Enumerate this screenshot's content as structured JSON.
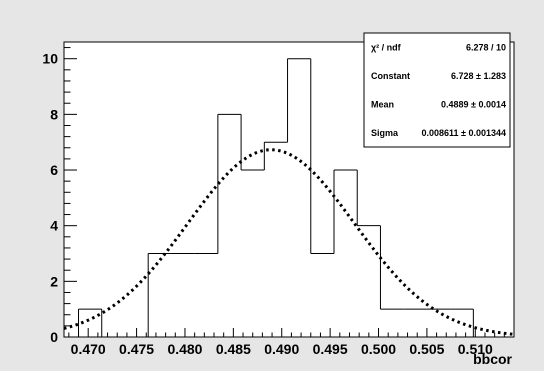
{
  "chart_data": {
    "type": "bar",
    "histogram_style": "step",
    "xlabel": "bbcor",
    "ylabel": "",
    "xlim": [
      0.4675,
      0.514
    ],
    "ylim": [
      0,
      10.6
    ],
    "x_ticks": [
      0.47,
      0.475,
      0.48,
      0.485,
      0.49,
      0.495,
      0.5,
      0.505,
      0.51
    ],
    "x_tick_labels": [
      "0.470",
      "0.475",
      "0.480",
      "0.485",
      "0.490",
      "0.495",
      "0.500",
      "0.505",
      "0.510"
    ],
    "y_ticks": [
      0,
      2,
      4,
      6,
      8,
      10
    ],
    "y_tick_labels": [
      "0",
      "2",
      "4",
      "6",
      "8",
      "10"
    ],
    "bin_edges": [
      0.469,
      0.4714,
      0.4738,
      0.4762,
      0.4786,
      0.481,
      0.4834,
      0.4858,
      0.4882,
      0.4906,
      0.493,
      0.4954,
      0.4978,
      0.5002,
      0.5026,
      0.505,
      0.5074,
      0.5098
    ],
    "counts": [
      1,
      0,
      0,
      3,
      3,
      3,
      8,
      6,
      7,
      10,
      3,
      6,
      4,
      1,
      1,
      1,
      1
    ],
    "fit": {
      "function": "gaus",
      "style": "dotted",
      "constant": 6.728,
      "mean": 0.4889,
      "sigma": 0.008611
    },
    "stats_box": {
      "position": "top-right",
      "rows": [
        {
          "label": "χ² / ndf",
          "value": "6.278 / 10"
        },
        {
          "label": "Constant",
          "value": "6.728 ± 1.283"
        },
        {
          "label": "Mean",
          "value": "0.4889 ± 0.0014"
        },
        {
          "label": "Sigma",
          "value": "0.008611 ± 0.001344"
        }
      ]
    },
    "colors": {
      "canvas": "#e6e6e6",
      "frame": "#ffffff",
      "histogram": "#000000",
      "fit": "#000000"
    }
  }
}
